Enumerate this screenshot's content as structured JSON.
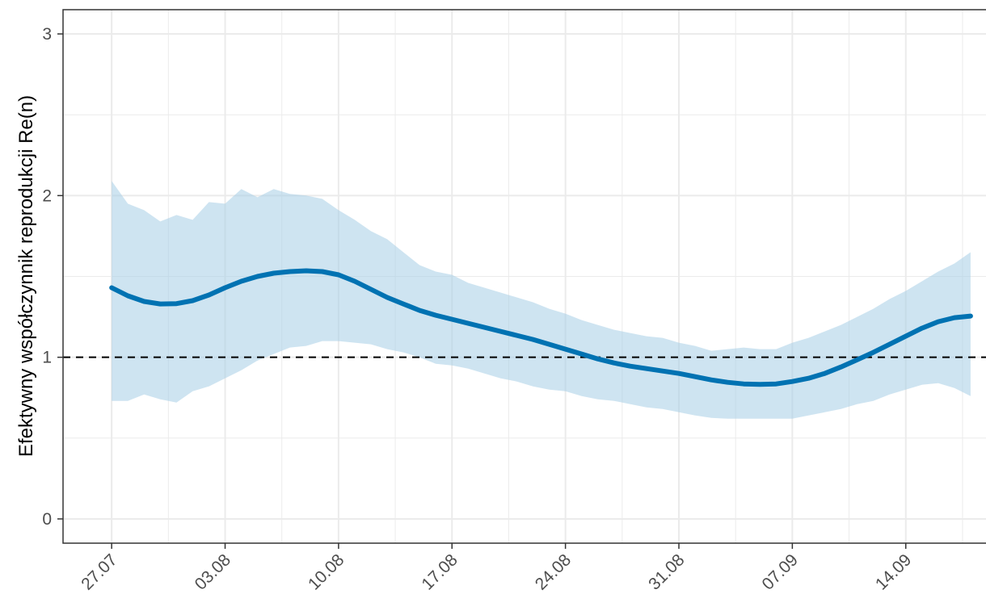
{
  "chart_data": {
    "type": "line",
    "title": "",
    "xlabel": "",
    "ylabel": "Efektywny współczynnik reprodukcji Re(n)",
    "x_ticks": [
      "27.07",
      "03.08",
      "10.08",
      "17.08",
      "24.08",
      "31.08",
      "07.09",
      "14.09"
    ],
    "x_tick_dates": [
      "2020-07-27",
      "2020-08-03",
      "2020-08-10",
      "2020-08-17",
      "2020-08-24",
      "2020-08-31",
      "2020-09-07",
      "2020-09-14"
    ],
    "xlim": [
      "2020-07-24",
      "2020-09-19"
    ],
    "y_ticks": [
      "0",
      "1",
      "2",
      "3"
    ],
    "ylim": [
      -0.15,
      3.15
    ],
    "grid": true,
    "reference_line": {
      "y": 1,
      "style": "dashed",
      "color": "#000000"
    },
    "colors": {
      "line": "#0072b2",
      "band": "#a6cde6"
    },
    "series": [
      {
        "x": [
          "2020-07-27",
          "2020-07-28",
          "2020-07-29",
          "2020-07-30",
          "2020-07-31",
          "2020-08-01",
          "2020-08-02",
          "2020-08-03",
          "2020-08-04",
          "2020-08-05",
          "2020-08-06",
          "2020-08-07",
          "2020-08-08",
          "2020-08-09",
          "2020-08-10",
          "2020-08-11",
          "2020-08-12",
          "2020-08-13",
          "2020-08-14",
          "2020-08-15",
          "2020-08-16",
          "2020-08-17",
          "2020-08-18",
          "2020-08-19",
          "2020-08-20",
          "2020-08-21",
          "2020-08-22",
          "2020-08-23",
          "2020-08-24",
          "2020-08-25",
          "2020-08-26",
          "2020-08-27",
          "2020-08-28",
          "2020-08-29",
          "2020-08-30",
          "2020-08-31",
          "2020-09-01",
          "2020-09-02",
          "2020-09-03",
          "2020-09-04",
          "2020-09-05",
          "2020-09-06",
          "2020-09-07",
          "2020-09-08",
          "2020-09-09",
          "2020-09-10",
          "2020-09-11",
          "2020-09-12",
          "2020-09-13",
          "2020-09-14",
          "2020-09-15",
          "2020-09-16",
          "2020-09-17",
          "2020-09-18"
        ],
        "y": [
          1.43,
          1.38,
          1.345,
          1.33,
          1.332,
          1.35,
          1.385,
          1.43,
          1.47,
          1.5,
          1.52,
          1.53,
          1.535,
          1.53,
          1.51,
          1.47,
          1.42,
          1.37,
          1.33,
          1.29,
          1.26,
          1.235,
          1.21,
          1.185,
          1.16,
          1.135,
          1.11,
          1.08,
          1.05,
          1.02,
          0.99,
          0.965,
          0.945,
          0.93,
          0.915,
          0.9,
          0.88,
          0.86,
          0.845,
          0.835,
          0.832,
          0.835,
          0.85,
          0.87,
          0.9,
          0.94,
          0.985,
          1.03,
          1.08,
          1.13,
          1.18,
          1.22,
          1.245,
          1.255
        ],
        "lower": [
          0.73,
          0.73,
          0.77,
          0.74,
          0.72,
          0.79,
          0.82,
          0.87,
          0.92,
          0.98,
          1.02,
          1.06,
          1.07,
          1.1,
          1.1,
          1.09,
          1.08,
          1.05,
          1.03,
          1.0,
          0.96,
          0.95,
          0.93,
          0.9,
          0.87,
          0.85,
          0.82,
          0.8,
          0.79,
          0.76,
          0.74,
          0.73,
          0.71,
          0.69,
          0.68,
          0.66,
          0.64,
          0.625,
          0.62,
          0.62,
          0.62,
          0.62,
          0.62,
          0.64,
          0.66,
          0.68,
          0.71,
          0.73,
          0.77,
          0.8,
          0.83,
          0.84,
          0.81,
          0.76
        ],
        "upper": [
          2.09,
          1.95,
          1.91,
          1.84,
          1.88,
          1.85,
          1.96,
          1.95,
          2.04,
          1.99,
          2.04,
          2.01,
          2.0,
          1.98,
          1.91,
          1.85,
          1.78,
          1.73,
          1.65,
          1.57,
          1.53,
          1.51,
          1.46,
          1.43,
          1.4,
          1.37,
          1.34,
          1.3,
          1.27,
          1.23,
          1.2,
          1.17,
          1.15,
          1.13,
          1.12,
          1.09,
          1.07,
          1.04,
          1.05,
          1.06,
          1.05,
          1.05,
          1.09,
          1.12,
          1.16,
          1.2,
          1.25,
          1.3,
          1.36,
          1.41,
          1.47,
          1.53,
          1.58,
          1.65
        ]
      }
    ]
  }
}
